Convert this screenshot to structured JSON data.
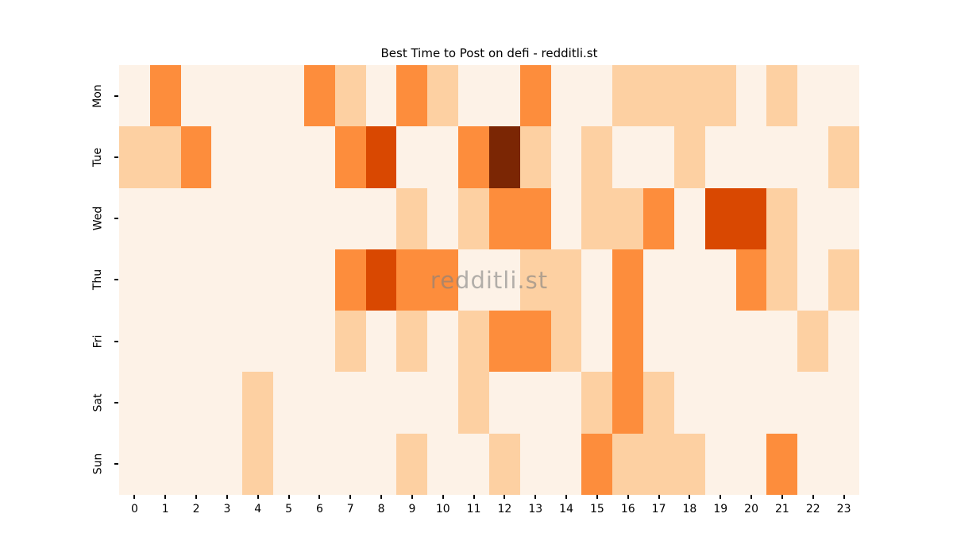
{
  "watermark_text": "redditli.st",
  "chart_data": {
    "type": "heatmap",
    "title": "Best Time to Post on defi - redditli.st",
    "xlabel": "",
    "ylabel": "",
    "rows": [
      "Mon",
      "Tue",
      "Wed",
      "Thu",
      "Fri",
      "Sat",
      "Sun"
    ],
    "columns": [
      "0",
      "1",
      "2",
      "3",
      "4",
      "5",
      "6",
      "7",
      "8",
      "9",
      "10",
      "11",
      "12",
      "13",
      "14",
      "15",
      "16",
      "17",
      "18",
      "19",
      "20",
      "21",
      "22",
      "23"
    ],
    "values": [
      [
        0,
        2,
        0,
        0,
        0,
        0,
        2,
        1,
        0,
        2,
        1,
        0,
        0,
        2,
        0,
        0,
        1,
        1,
        1,
        1,
        0,
        1,
        0,
        0
      ],
      [
        1,
        1,
        2,
        0,
        0,
        0,
        0,
        2,
        3,
        0,
        0,
        2,
        4,
        1,
        0,
        1,
        0,
        0,
        1,
        0,
        0,
        0,
        0,
        1
      ],
      [
        0,
        0,
        0,
        0,
        0,
        0,
        0,
        0,
        0,
        1,
        0,
        1,
        2,
        2,
        0,
        1,
        1,
        2,
        0,
        3,
        3,
        1,
        0,
        0
      ],
      [
        0,
        0,
        0,
        0,
        0,
        0,
        0,
        2,
        3,
        2,
        2,
        0,
        0,
        1,
        1,
        0,
        2,
        0,
        0,
        0,
        2,
        1,
        0,
        1
      ],
      [
        0,
        0,
        0,
        0,
        0,
        0,
        0,
        1,
        0,
        1,
        0,
        1,
        2,
        2,
        1,
        0,
        2,
        0,
        0,
        0,
        0,
        0,
        1,
        0
      ],
      [
        0,
        0,
        0,
        0,
        1,
        0,
        0,
        0,
        0,
        0,
        0,
        1,
        0,
        0,
        0,
        1,
        2,
        1,
        0,
        0,
        0,
        0,
        0,
        0
      ],
      [
        0,
        0,
        0,
        0,
        1,
        0,
        0,
        0,
        0,
        1,
        0,
        0,
        1,
        0,
        0,
        2,
        1,
        1,
        1,
        0,
        0,
        2,
        0,
        0
      ]
    ],
    "value_legend": "relative posting-activity intensity read from color shading: 0=lowest, 4=highest (no colorbar shown)",
    "colormap": "Oranges",
    "palette": {
      "0": "#fdf2e7",
      "1": "#fdd0a2",
      "2": "#fd8d3c",
      "3": "#d94801",
      "4": "#7b2604"
    },
    "text_color": "#000000",
    "watermark_color": "rgba(128,128,128,0.6)",
    "grid": false,
    "legend": false
  }
}
